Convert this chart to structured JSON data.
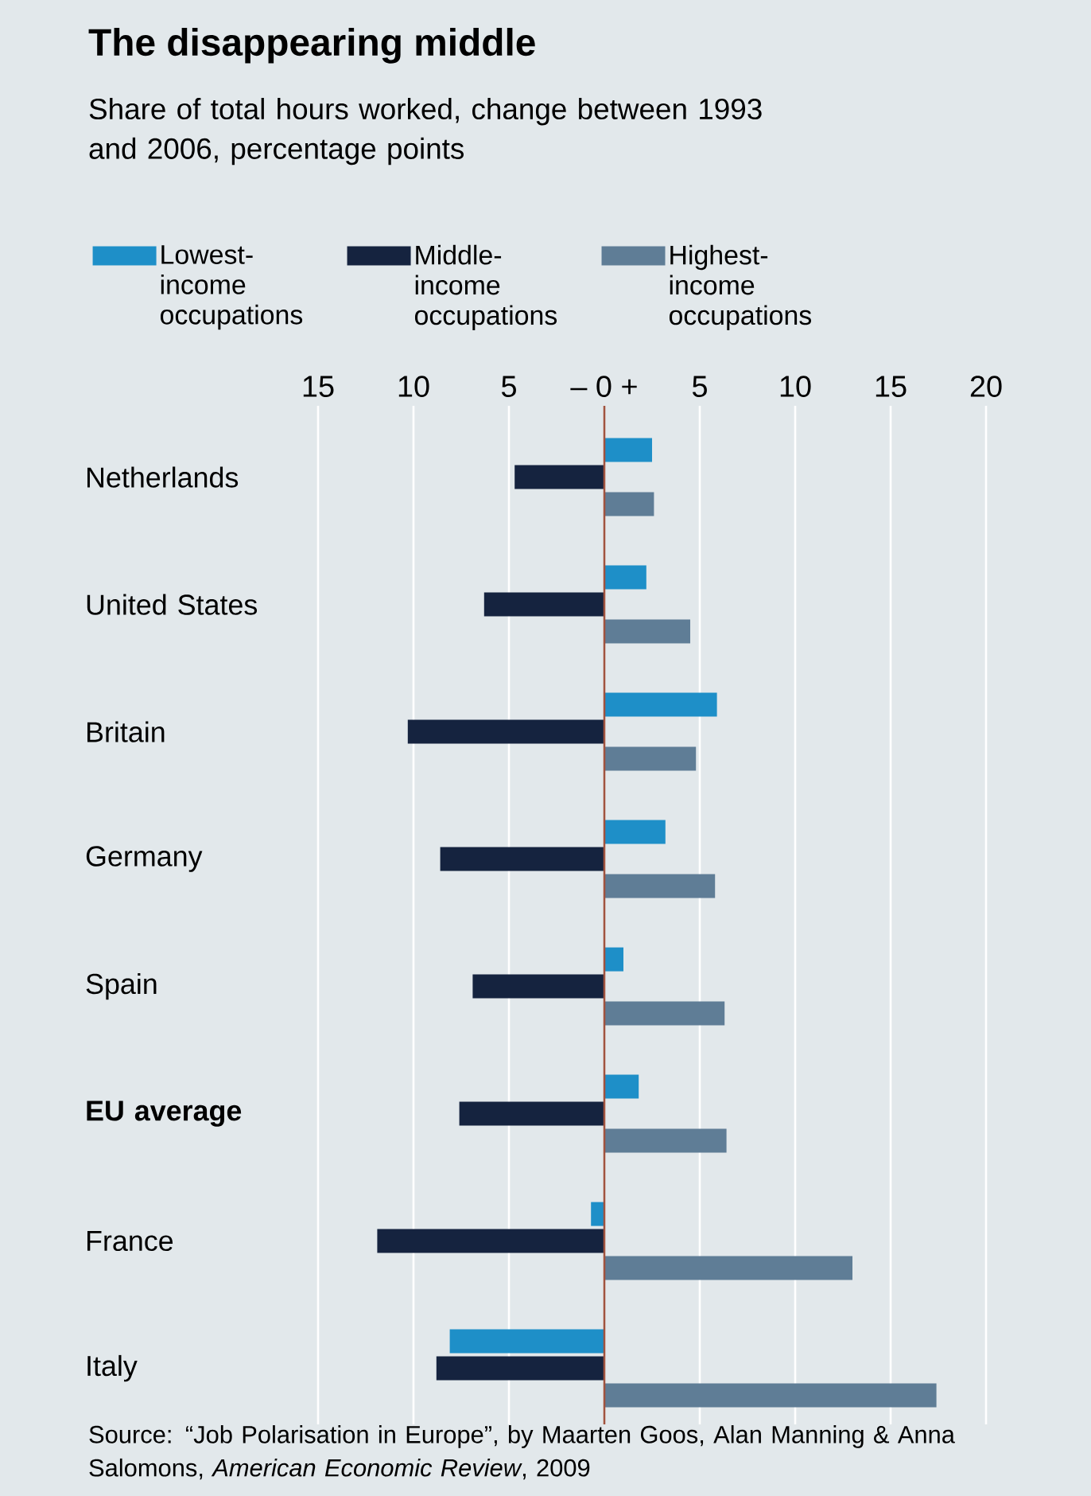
{
  "chart_data": {
    "type": "bar",
    "orientation": "horizontal",
    "title": "The disappearing middle",
    "subtitle": "Share of total hours worked, change between 1993 and 2006, percentage points",
    "categories": [
      "Netherlands",
      "United States",
      "Britain",
      "Germany",
      "Spain",
      "**EU average**",
      "France",
      "Italy"
    ],
    "series": [
      {
        "name": "Lowest-income occupations",
        "color": "#1e8fc8",
        "values": [
          2.5,
          2.2,
          5.9,
          3.2,
          1.0,
          1.8,
          -0.7,
          -8.1
        ]
      },
      {
        "name": "Middle-income occupations",
        "color": "#15233f",
        "values": [
          -4.7,
          -6.3,
          -10.3,
          -8.6,
          -6.9,
          -7.6,
          -11.9,
          -8.8
        ]
      },
      {
        "name": "Highest-income occupations",
        "color": "#5f7d96",
        "values": [
          2.6,
          4.5,
          4.8,
          5.8,
          6.3,
          6.4,
          13.0,
          17.4
        ]
      }
    ],
    "xlim": [
      -15,
      20
    ],
    "xticks": [
      {
        "value": -15,
        "label": "15"
      },
      {
        "value": -10,
        "label": "10"
      },
      {
        "value": -5,
        "label": "5"
      },
      {
        "value": 0,
        "label": "– 0 +"
      },
      5,
      10,
      15,
      20
    ],
    "grid": "x",
    "legend": "top",
    "ref_lines": [
      {
        "axis": "x",
        "value": 0,
        "color": "#a0533f"
      }
    ],
    "annotations": [
      "Source: “Job Polarisation in Europe”, by Maarten Goos, Alan Manning & Anna Salomons, *American Economic Review*, 2009"
    ]
  }
}
